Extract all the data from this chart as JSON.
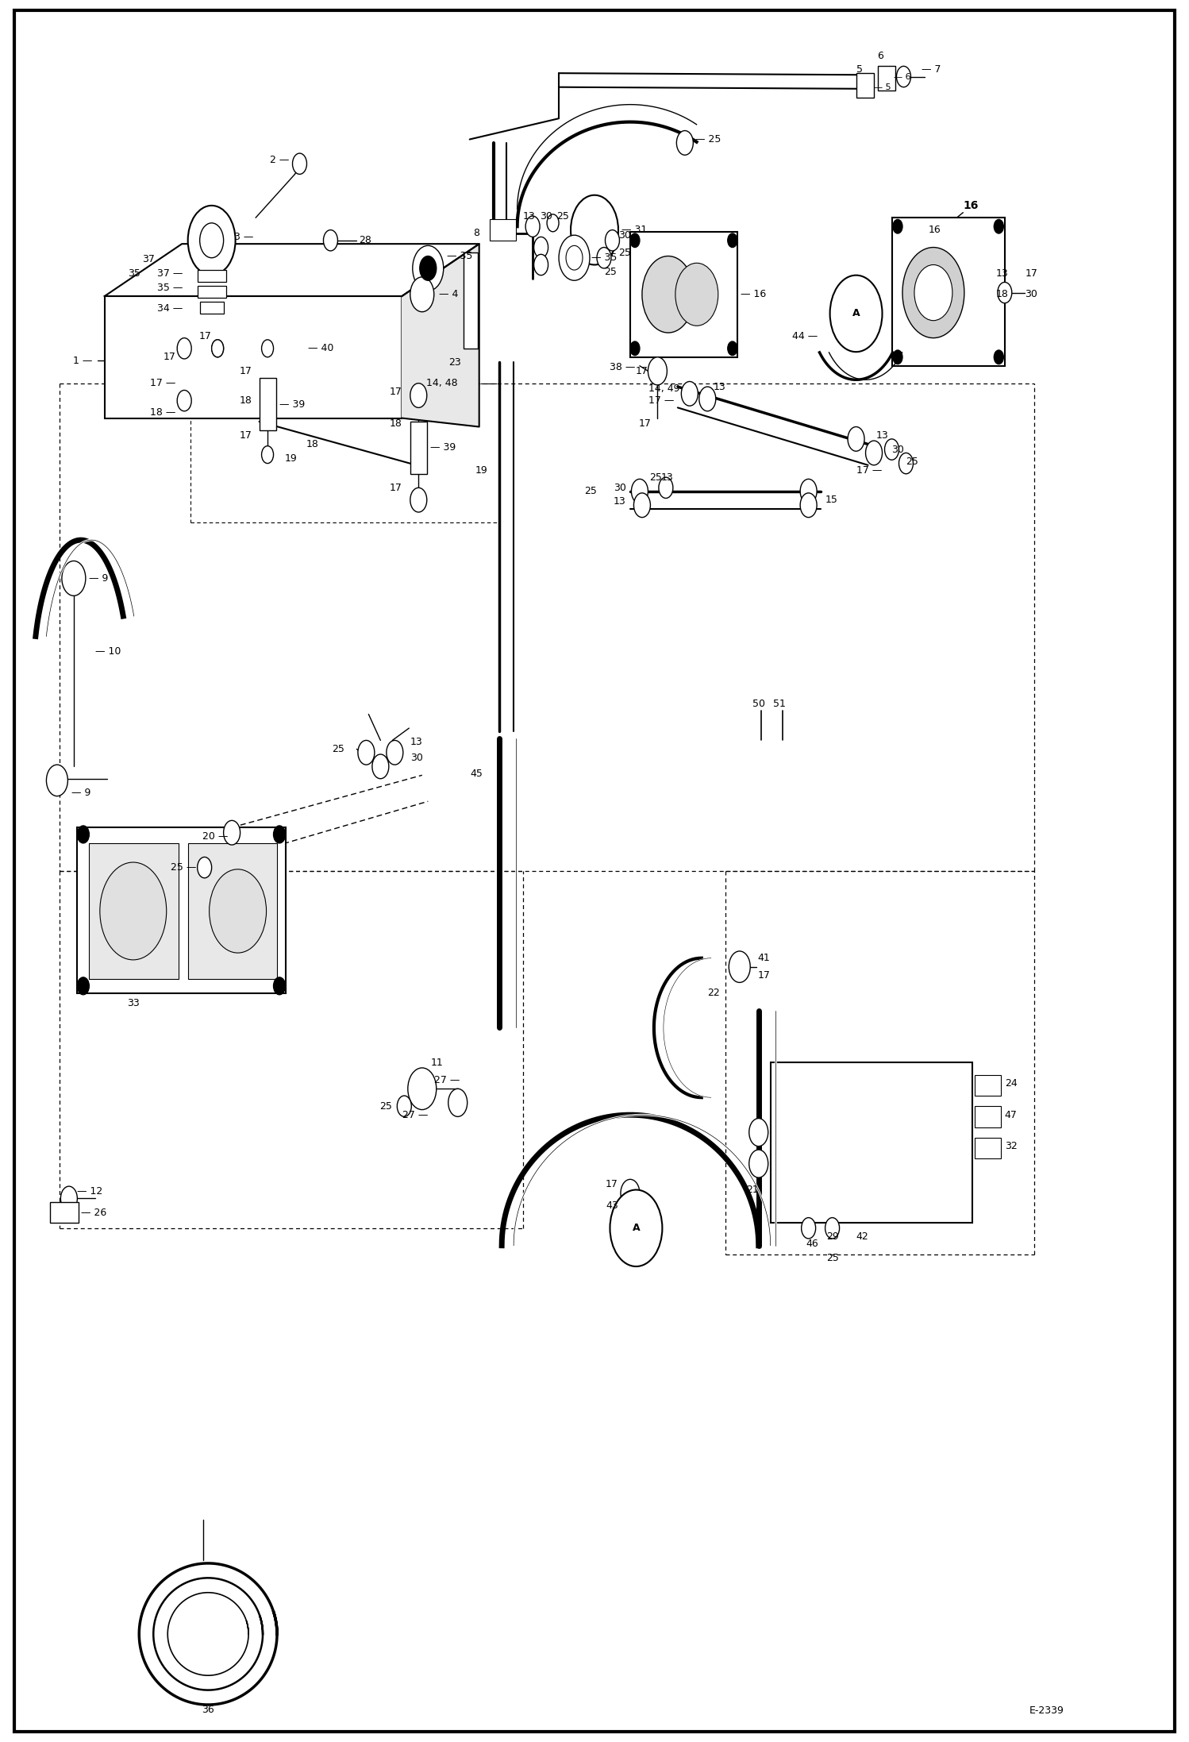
{
  "background_color": "#ffffff",
  "diagram_id": "E-2339",
  "figure_width": 14.98,
  "figure_height": 21.94,
  "dpi": 100,
  "border_lw": 3.0
}
